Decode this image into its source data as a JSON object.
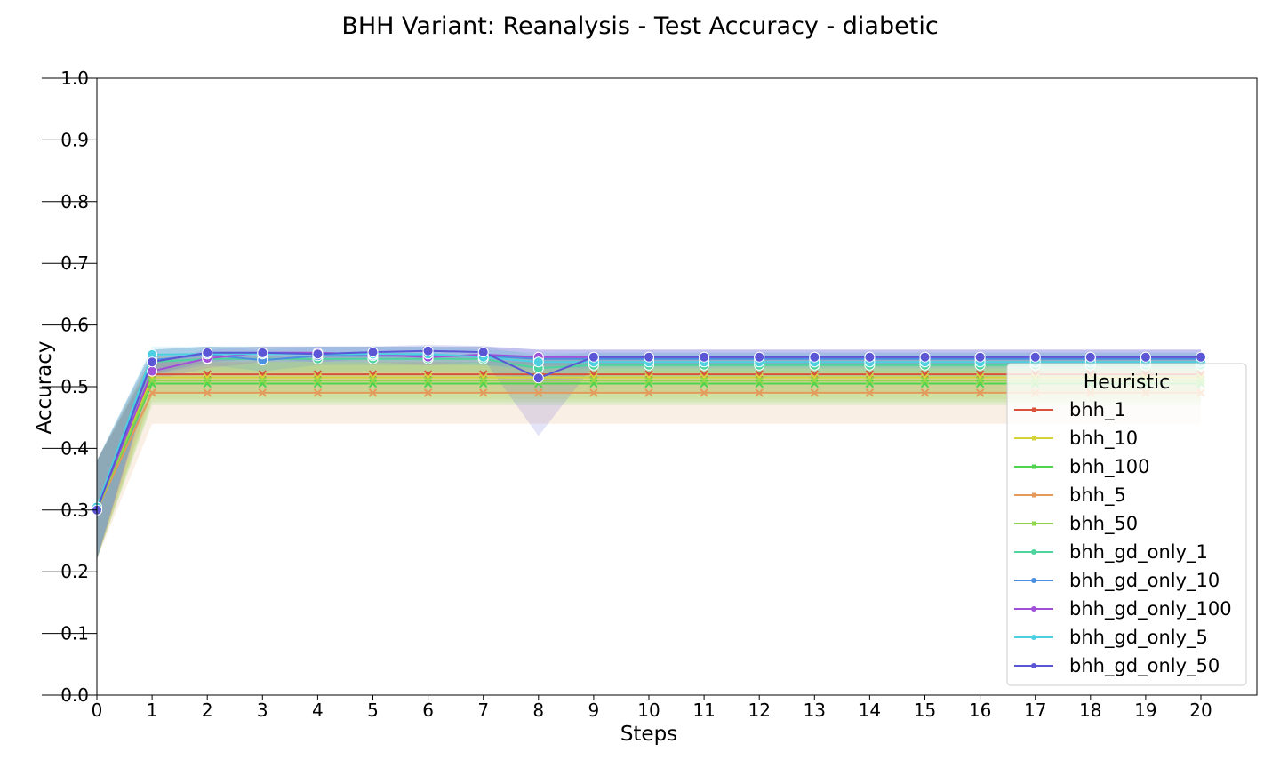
{
  "chart_data": {
    "type": "line",
    "title": "BHH Variant: Reanalysis - Test Accuracy - diabetic",
    "xlabel": "Steps",
    "ylabel": "Accuracy",
    "xlim": [
      0,
      21
    ],
    "ylim": [
      0,
      1
    ],
    "x": [
      0,
      1,
      2,
      3,
      4,
      5,
      6,
      7,
      8,
      9,
      10,
      11,
      12,
      13,
      14,
      15,
      16,
      17,
      18,
      19,
      20
    ],
    "yticks": [
      "0.0",
      "0.1",
      "0.2",
      "0.3",
      "0.4",
      "0.5",
      "0.6",
      "0.7",
      "0.8",
      "0.9",
      "1.0"
    ],
    "xticks": [
      "0",
      "1",
      "2",
      "3",
      "4",
      "5",
      "6",
      "7",
      "8",
      "9",
      "10",
      "11",
      "12",
      "13",
      "14",
      "15",
      "16",
      "17",
      "18",
      "19",
      "20"
    ],
    "grid": false,
    "legend": {
      "title": "Heuristic",
      "placement": "lower-right"
    },
    "series": [
      {
        "name": "bhh_1",
        "color": "#d9533c",
        "marker": "x",
        "values": [
          0.3,
          0.52,
          0.52,
          0.52,
          0.52,
          0.52,
          0.52,
          0.52,
          0.52,
          0.52,
          0.52,
          0.52,
          0.52,
          0.52,
          0.52,
          0.52,
          0.52,
          0.52,
          0.52,
          0.52,
          0.52
        ],
        "lower": [
          0.22,
          0.49,
          0.49,
          0.49,
          0.49,
          0.49,
          0.49,
          0.49,
          0.49,
          0.49,
          0.49,
          0.49,
          0.49,
          0.49,
          0.49,
          0.49,
          0.49,
          0.49,
          0.49,
          0.49,
          0.49
        ],
        "upper": [
          0.38,
          0.55,
          0.55,
          0.55,
          0.55,
          0.55,
          0.55,
          0.55,
          0.55,
          0.55,
          0.55,
          0.55,
          0.55,
          0.55,
          0.55,
          0.55,
          0.55,
          0.55,
          0.55,
          0.55,
          0.55
        ]
      },
      {
        "name": "bhh_10",
        "color": "#d4d43a",
        "marker": "x",
        "values": [
          0.3,
          0.515,
          0.515,
          0.515,
          0.515,
          0.515,
          0.515,
          0.515,
          0.515,
          0.515,
          0.515,
          0.515,
          0.515,
          0.515,
          0.515,
          0.515,
          0.515,
          0.515,
          0.515,
          0.515,
          0.515
        ],
        "lower": [
          0.22,
          0.48,
          0.48,
          0.48,
          0.48,
          0.48,
          0.48,
          0.48,
          0.48,
          0.48,
          0.48,
          0.48,
          0.48,
          0.48,
          0.48,
          0.48,
          0.48,
          0.48,
          0.48,
          0.48,
          0.48
        ],
        "upper": [
          0.38,
          0.55,
          0.55,
          0.55,
          0.55,
          0.55,
          0.55,
          0.55,
          0.55,
          0.55,
          0.55,
          0.55,
          0.55,
          0.55,
          0.55,
          0.55,
          0.55,
          0.55,
          0.55,
          0.55,
          0.55
        ]
      },
      {
        "name": "bhh_100",
        "color": "#4fd44f",
        "marker": "x",
        "values": [
          0.3,
          0.505,
          0.505,
          0.505,
          0.505,
          0.505,
          0.505,
          0.505,
          0.505,
          0.505,
          0.505,
          0.505,
          0.505,
          0.505,
          0.505,
          0.505,
          0.505,
          0.505,
          0.505,
          0.505,
          0.505
        ],
        "lower": [
          0.22,
          0.47,
          0.47,
          0.47,
          0.47,
          0.47,
          0.47,
          0.47,
          0.47,
          0.47,
          0.47,
          0.47,
          0.47,
          0.47,
          0.47,
          0.47,
          0.47,
          0.47,
          0.47,
          0.47,
          0.47
        ],
        "upper": [
          0.38,
          0.54,
          0.54,
          0.54,
          0.54,
          0.54,
          0.54,
          0.54,
          0.54,
          0.54,
          0.54,
          0.54,
          0.54,
          0.54,
          0.54,
          0.54,
          0.54,
          0.54,
          0.54,
          0.54,
          0.54
        ]
      },
      {
        "name": "bhh_5",
        "color": "#e39a5a",
        "marker": "x",
        "values": [
          0.3,
          0.49,
          0.49,
          0.49,
          0.49,
          0.49,
          0.49,
          0.49,
          0.49,
          0.49,
          0.49,
          0.49,
          0.49,
          0.49,
          0.49,
          0.49,
          0.49,
          0.49,
          0.49,
          0.49,
          0.49
        ],
        "lower": [
          0.22,
          0.44,
          0.44,
          0.44,
          0.44,
          0.44,
          0.44,
          0.44,
          0.44,
          0.44,
          0.44,
          0.44,
          0.44,
          0.44,
          0.44,
          0.44,
          0.44,
          0.44,
          0.44,
          0.44,
          0.44
        ],
        "upper": [
          0.38,
          0.54,
          0.54,
          0.54,
          0.54,
          0.54,
          0.54,
          0.54,
          0.54,
          0.54,
          0.54,
          0.54,
          0.54,
          0.54,
          0.54,
          0.54,
          0.54,
          0.54,
          0.54,
          0.54,
          0.54
        ]
      },
      {
        "name": "bhh_50",
        "color": "#8fd64a",
        "marker": "x",
        "values": [
          0.3,
          0.51,
          0.51,
          0.51,
          0.51,
          0.51,
          0.51,
          0.51,
          0.51,
          0.51,
          0.51,
          0.51,
          0.51,
          0.51,
          0.51,
          0.51,
          0.51,
          0.51,
          0.51,
          0.51,
          0.51
        ],
        "lower": [
          0.22,
          0.475,
          0.475,
          0.475,
          0.475,
          0.475,
          0.475,
          0.475,
          0.475,
          0.475,
          0.475,
          0.475,
          0.475,
          0.475,
          0.475,
          0.475,
          0.475,
          0.475,
          0.475,
          0.475,
          0.475
        ],
        "upper": [
          0.38,
          0.545,
          0.545,
          0.545,
          0.545,
          0.545,
          0.545,
          0.545,
          0.545,
          0.545,
          0.545,
          0.545,
          0.545,
          0.545,
          0.545,
          0.545,
          0.545,
          0.545,
          0.545,
          0.545,
          0.545
        ]
      },
      {
        "name": "bhh_gd_only_1",
        "color": "#4ed49e",
        "marker": "o",
        "values": [
          0.3,
          0.54,
          0.545,
          0.545,
          0.545,
          0.545,
          0.545,
          0.545,
          0.53,
          0.535,
          0.535,
          0.535,
          0.535,
          0.535,
          0.535,
          0.535,
          0.535,
          0.535,
          0.535,
          0.535,
          0.535
        ],
        "lower": [
          0.22,
          0.52,
          0.525,
          0.525,
          0.525,
          0.525,
          0.525,
          0.525,
          0.51,
          0.515,
          0.515,
          0.515,
          0.515,
          0.515,
          0.515,
          0.515,
          0.515,
          0.515,
          0.515,
          0.515,
          0.515
        ],
        "upper": [
          0.38,
          0.56,
          0.565,
          0.565,
          0.565,
          0.565,
          0.565,
          0.565,
          0.55,
          0.555,
          0.555,
          0.555,
          0.555,
          0.555,
          0.555,
          0.555,
          0.555,
          0.555,
          0.555,
          0.555,
          0.555
        ]
      },
      {
        "name": "bhh_gd_only_10",
        "color": "#4b8fe0",
        "marker": "o",
        "values": [
          0.3,
          0.543,
          0.552,
          0.543,
          0.55,
          0.55,
          0.55,
          0.55,
          0.545,
          0.545,
          0.545,
          0.545,
          0.545,
          0.545,
          0.545,
          0.545,
          0.545,
          0.545,
          0.545,
          0.545,
          0.545
        ],
        "lower": [
          0.22,
          0.52,
          0.535,
          0.525,
          0.535,
          0.535,
          0.535,
          0.535,
          0.53,
          0.53,
          0.53,
          0.53,
          0.53,
          0.53,
          0.53,
          0.53,
          0.53,
          0.53,
          0.53,
          0.53,
          0.53
        ],
        "upper": [
          0.38,
          0.56,
          0.565,
          0.56,
          0.565,
          0.565,
          0.565,
          0.565,
          0.56,
          0.56,
          0.56,
          0.56,
          0.56,
          0.56,
          0.56,
          0.56,
          0.56,
          0.56,
          0.56,
          0.56,
          0.56
        ]
      },
      {
        "name": "bhh_gd_only_100",
        "color": "#a050d8",
        "marker": "o",
        "values": [
          0.302,
          0.525,
          0.546,
          0.555,
          0.555,
          0.552,
          0.548,
          0.552,
          0.548,
          0.548,
          0.548,
          0.548,
          0.548,
          0.548,
          0.548,
          0.548,
          0.548,
          0.548,
          0.548,
          0.548,
          0.548
        ],
        "lower": [
          0.22,
          0.51,
          0.53,
          0.54,
          0.54,
          0.54,
          0.535,
          0.54,
          0.535,
          0.535,
          0.535,
          0.535,
          0.535,
          0.535,
          0.535,
          0.535,
          0.535,
          0.535,
          0.535,
          0.535,
          0.535
        ],
        "upper": [
          0.38,
          0.54,
          0.56,
          0.565,
          0.565,
          0.565,
          0.565,
          0.565,
          0.56,
          0.56,
          0.56,
          0.56,
          0.56,
          0.56,
          0.56,
          0.56,
          0.56,
          0.56,
          0.56,
          0.56,
          0.56
        ]
      },
      {
        "name": "bhh_gd_only_5",
        "color": "#4ccfe0",
        "marker": "o",
        "values": [
          0.305,
          0.552,
          0.553,
          0.553,
          0.553,
          0.553,
          0.553,
          0.548,
          0.54,
          0.54,
          0.54,
          0.54,
          0.54,
          0.54,
          0.54,
          0.54,
          0.54,
          0.54,
          0.54,
          0.54,
          0.54
        ],
        "lower": [
          0.22,
          0.54,
          0.54,
          0.54,
          0.54,
          0.54,
          0.54,
          0.535,
          0.525,
          0.525,
          0.525,
          0.525,
          0.525,
          0.525,
          0.525,
          0.525,
          0.525,
          0.525,
          0.525,
          0.525,
          0.525
        ],
        "upper": [
          0.38,
          0.565,
          0.565,
          0.565,
          0.565,
          0.565,
          0.565,
          0.56,
          0.555,
          0.555,
          0.555,
          0.555,
          0.555,
          0.555,
          0.555,
          0.555,
          0.555,
          0.555,
          0.555,
          0.555,
          0.555
        ]
      },
      {
        "name": "bhh_gd_only_50",
        "color": "#5a56d6",
        "marker": "o",
        "values": [
          0.3,
          0.54,
          0.555,
          0.555,
          0.553,
          0.556,
          0.558,
          0.556,
          0.514,
          0.548,
          0.548,
          0.548,
          0.548,
          0.548,
          0.548,
          0.548,
          0.548,
          0.548,
          0.548,
          0.548,
          0.548
        ],
        "lower": [
          0.22,
          0.52,
          0.54,
          0.545,
          0.54,
          0.545,
          0.545,
          0.545,
          0.42,
          0.535,
          0.535,
          0.535,
          0.535,
          0.535,
          0.535,
          0.535,
          0.535,
          0.535,
          0.535,
          0.535,
          0.535
        ],
        "upper": [
          0.38,
          0.56,
          0.565,
          0.565,
          0.565,
          0.565,
          0.568,
          0.566,
          0.56,
          0.56,
          0.56,
          0.56,
          0.56,
          0.56,
          0.56,
          0.56,
          0.56,
          0.56,
          0.56,
          0.56,
          0.56
        ]
      }
    ]
  }
}
